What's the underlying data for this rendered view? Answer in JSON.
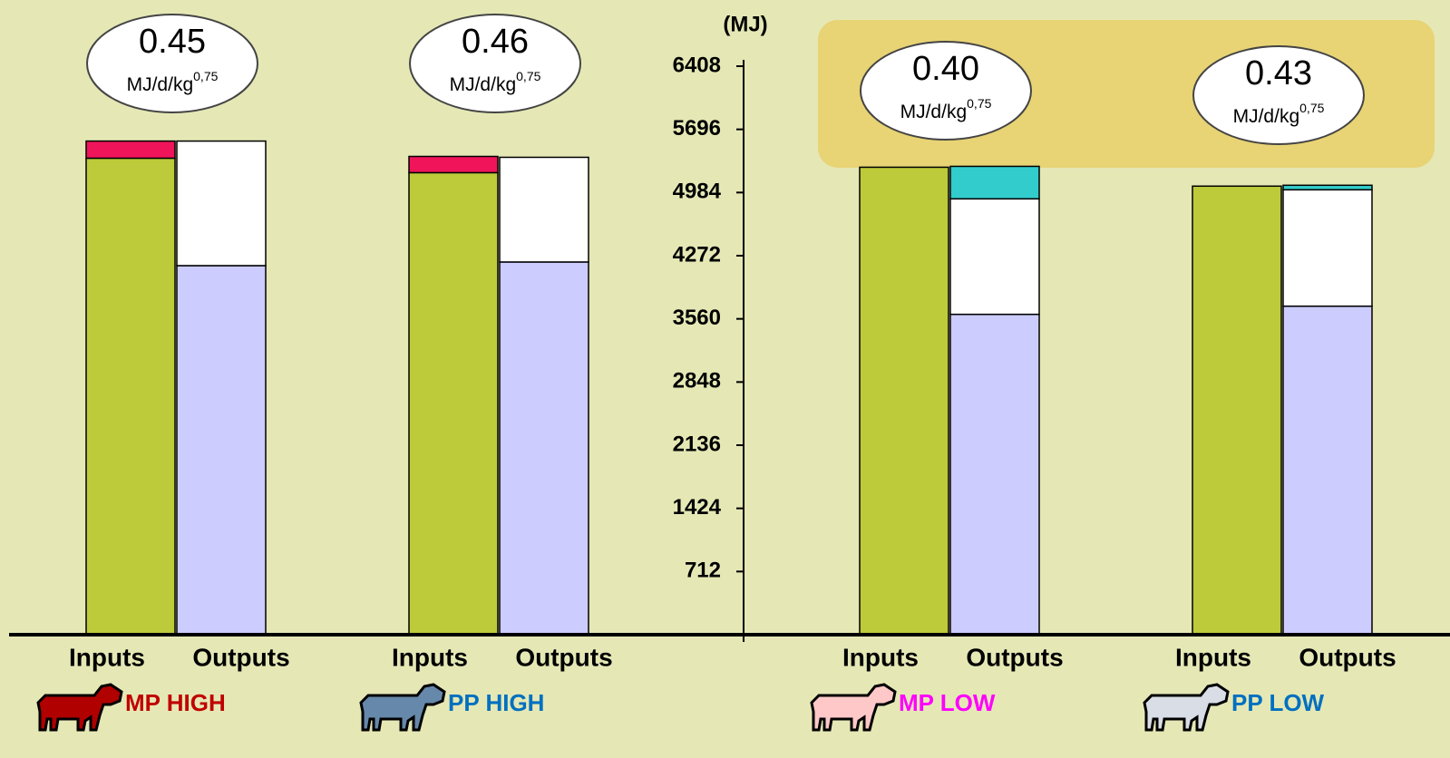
{
  "chart_data": {
    "type": "bar",
    "y_label": "(MJ)",
    "ylim": [
      0,
      6408
    ],
    "yticks": [
      712,
      1424,
      2136,
      2848,
      3560,
      4272,
      4984,
      5696,
      6408
    ],
    "categories": [
      "MP HIGH",
      "PP HIGH",
      "MP LOW",
      "PP LOW"
    ],
    "category_colors": [
      "#c00000",
      "#0070c0",
      "#ff00ff",
      "#0070c0"
    ],
    "cow_colors": [
      "#b00000",
      "#6688aa",
      "#ffc8c8",
      "#d8dde6"
    ],
    "stacks": [
      "Inputs",
      "Outputs"
    ],
    "series": [
      {
        "stack": "Inputs",
        "color": "#bdca3a",
        "values": [
          5371,
          5208,
          5269,
          5056
        ]
      },
      {
        "stack": "Inputs",
        "color": "#f0145a",
        "values": [
          193,
          183,
          0,
          0
        ]
      },
      {
        "stack": "Outputs",
        "color": "#ccccff",
        "values": [
          4160,
          4201,
          3611,
          3703
        ]
      },
      {
        "stack": "Outputs",
        "color": "#ffffff",
        "values": [
          1404,
          1180,
          1302,
          1312
        ]
      },
      {
        "stack": "Outputs",
        "color": "#33cccc",
        "values": [
          0,
          0,
          366,
          51
        ]
      }
    ],
    "efficiency": {
      "values": [
        0.45,
        0.46,
        0.4,
        0.43
      ],
      "value_labels": [
        "0.45",
        "0.46",
        "0.40",
        "0.43"
      ],
      "unit": "MJ/d/kg",
      "exponent": "0,75"
    }
  }
}
